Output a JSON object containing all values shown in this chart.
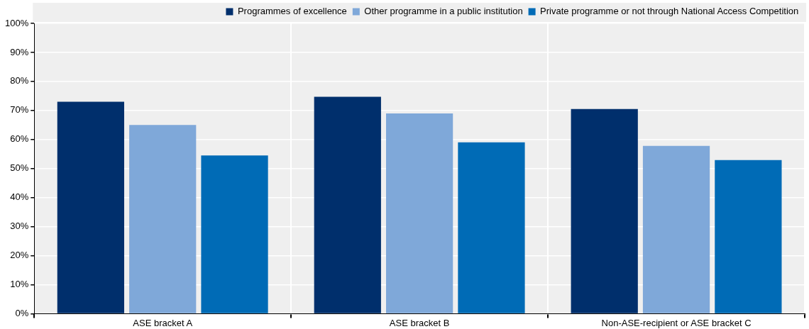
{
  "chart_data": {
    "type": "bar",
    "categories": [
      "ASE bracket A",
      "ASE bracket B",
      "Non-ASE-recipient or ASE bracket C"
    ],
    "series": [
      {
        "name": "Programmes of excellence",
        "color": "#002f6c",
        "values": [
          73,
          74.7,
          70.5
        ]
      },
      {
        "name": "Other programme in a public institution",
        "color": "#7fa8d9",
        "values": [
          65,
          69,
          57.8
        ]
      },
      {
        "name": "Private programme or not through National Access Competition",
        "color": "#006bb6",
        "values": [
          54.5,
          59,
          52.9
        ]
      }
    ],
    "ylim": [
      0,
      100
    ],
    "yticks": [
      {
        "value": 0,
        "label": "0%"
      },
      {
        "value": 10,
        "label": "10%"
      },
      {
        "value": 20,
        "label": "20%"
      },
      {
        "value": 30,
        "label": "30%"
      },
      {
        "value": 40,
        "label": "40%"
      },
      {
        "value": 50,
        "label": "50%"
      },
      {
        "value": 60,
        "label": "60%"
      },
      {
        "value": 70,
        "label": "70%"
      },
      {
        "value": 80,
        "label": "80%"
      },
      {
        "value": 90,
        "label": "90%"
      },
      {
        "value": 100,
        "label": "100%"
      }
    ],
    "grid": true,
    "legend": "top"
  }
}
